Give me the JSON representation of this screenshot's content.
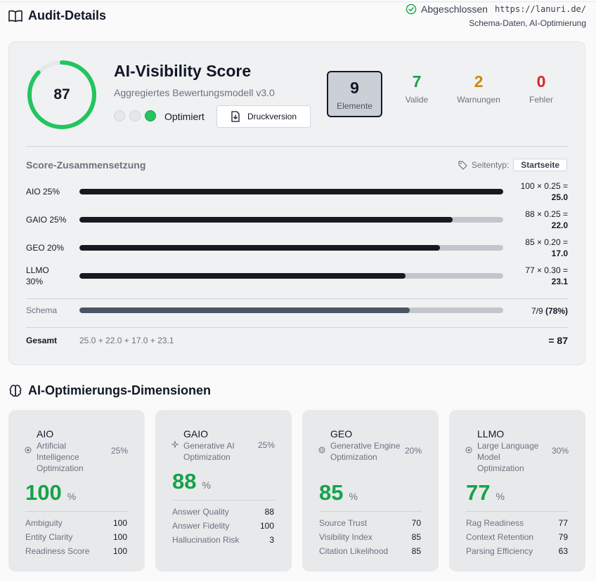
{
  "header": {
    "title": "Audit-Details",
    "status": "Abgeschlossen",
    "url": "https://lanuri.de/",
    "tags": "Schema-Daten, AI-Optimierung"
  },
  "score_card": {
    "score": "87",
    "score_fraction": 0.87,
    "title": "AI-Visibility Score",
    "subtitle": "Aggregiertes Bewertungsmodell v3.0",
    "status_label": "Optimiert",
    "print_label": "Druckversion",
    "stats": [
      {
        "value": "9",
        "label": "Elemente",
        "color": "#111827"
      },
      {
        "value": "7",
        "label": "Valide",
        "color": "#16a34a"
      },
      {
        "value": "2",
        "label": "Warnungen",
        "color": "#ca8a04"
      },
      {
        "value": "0",
        "label": "Fehler",
        "color": "#dc2626"
      }
    ]
  },
  "composition": {
    "title": "Score-Zusammensetzung",
    "page_type_label": "Seitentyp:",
    "page_type_value": "Startseite",
    "rows": [
      {
        "label": "AIO 25%",
        "value": 100,
        "calc": "100 × 0.25 =",
        "result": "25.0"
      },
      {
        "label": "GAIO 25%",
        "value": 88,
        "calc": "88 × 0.25 =",
        "result": "22.0"
      },
      {
        "label": "GEO 20%",
        "value": 85,
        "calc": "85 × 0.20 =",
        "result": "17.0"
      },
      {
        "label": "LLMO 30%",
        "value": 77,
        "calc": "77 × 0.30 =",
        "result": "23.1"
      }
    ],
    "schema": {
      "label": "Schema",
      "value": 78,
      "count": "7/9",
      "percent": "(78%)"
    },
    "total": {
      "label": "Gesamt",
      "equation": "25.0 + 22.0 + 17.0 + 23.1",
      "result": "= 87"
    }
  },
  "dimensions": {
    "title": "AI-Optimierungs-Dimensionen",
    "cards": [
      {
        "name": "AIO",
        "icon": "target-icon",
        "description": "Artificial Intelligence Optimization",
        "weight": "25%",
        "score": "100",
        "unit": "%",
        "metrics": [
          {
            "name": "Ambiguity",
            "value": "100"
          },
          {
            "name": "Entity Clarity",
            "value": "100"
          },
          {
            "name": "Readiness Score",
            "value": "100"
          }
        ]
      },
      {
        "name": "GAIO",
        "icon": "sparkle-icon",
        "description": "Generative AI Optimization",
        "weight": "25%",
        "score": "88",
        "unit": "%",
        "metrics": [
          {
            "name": "Answer Quality",
            "value": "88"
          },
          {
            "name": "Answer Fidelity",
            "value": "100"
          },
          {
            "name": "Hallucination Risk",
            "value": "3"
          }
        ]
      },
      {
        "name": "GEO",
        "icon": "globe-icon",
        "description": "Generative Engine Optimization",
        "weight": "20%",
        "score": "85",
        "unit": "%",
        "metrics": [
          {
            "name": "Source Trust",
            "value": "70"
          },
          {
            "name": "Visibility Index",
            "value": "85"
          },
          {
            "name": "Citation Likelihood",
            "value": "85"
          }
        ]
      },
      {
        "name": "LLMO",
        "icon": "chip-icon",
        "description": "Large Language Model Optimization",
        "weight": "30%",
        "score": "77",
        "unit": "%",
        "metrics": [
          {
            "name": "Rag Readiness",
            "value": "77"
          },
          {
            "name": "Context Retention",
            "value": "79"
          },
          {
            "name": "Parsing Efficiency",
            "value": "63"
          }
        ]
      }
    ]
  },
  "colors": {
    "accent_green": "#22c55e",
    "score_green": "#16a34a",
    "warning": "#ca8a04",
    "error": "#dc2626"
  }
}
